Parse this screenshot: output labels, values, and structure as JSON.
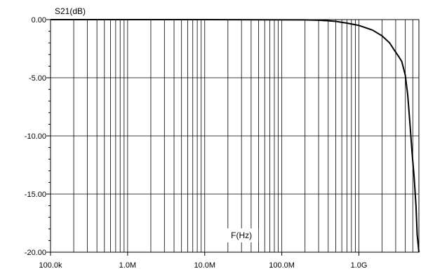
{
  "chart_data": {
    "type": "line",
    "xscale": "log",
    "xlim": [
      100000,
      6000000000
    ],
    "ylim": [
      -20,
      0
    ],
    "grid": true,
    "ylabel": "S21(dB)",
    "xlabel": "F(Hz)",
    "x_tick_values": [
      100000,
      1000000,
      10000000,
      100000000,
      1000000000
    ],
    "x_tick_labels": [
      "100.0k",
      "1.0M",
      "10.0M",
      "100.0M",
      "1.0G"
    ],
    "y_tick_values": [
      0,
      -5,
      -10,
      -15,
      -20
    ],
    "y_tick_labels": [
      "0.00",
      "-5.00",
      "-10.00",
      "-15.00",
      "-20.00"
    ],
    "series": [
      {
        "x": [
          100000,
          10000000,
          200000000,
          300000000,
          400000000,
          500000000,
          700000000,
          1000000000,
          1500000000,
          2000000000,
          2500000000,
          2800000000,
          3000000000,
          3300000000,
          3600000000,
          4000000000,
          4300000000,
          4600000000,
          4900000000,
          5200000000,
          5500000000,
          5700000000,
          6000000000
        ],
        "y": [
          0,
          0,
          -0.02,
          -0.05,
          -0.1,
          -0.15,
          -0.3,
          -0.5,
          -0.9,
          -1.4,
          -2.0,
          -2.5,
          -2.8,
          -3.2,
          -3.6,
          -4.8,
          -6.5,
          -9.0,
          -11.5,
          -13.5,
          -16.0,
          -18.5,
          -20.0
        ]
      }
    ]
  }
}
